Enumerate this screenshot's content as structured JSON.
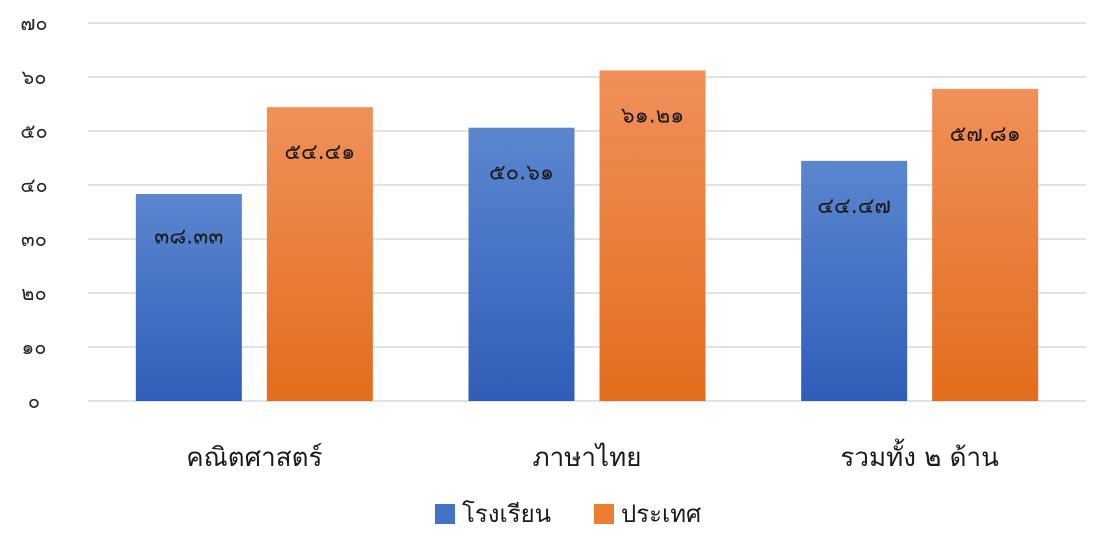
{
  "chart_data": {
    "type": "bar",
    "categories": [
      "คณิตศาสตร์",
      "ภาษาไทย",
      "รวมทั้ง ๒ ด้าน"
    ],
    "series": [
      {
        "name": "โรงเรียน",
        "values": [
          38.33,
          50.61,
          44.47
        ],
        "labels": [
          "๓๘.๓๓",
          "๕๐.๖๑",
          "๔๔.๔๗"
        ],
        "color": "#4472c4"
      },
      {
        "name": "ประเทศ",
        "values": [
          54.41,
          61.21,
          57.81
        ],
        "labels": [
          "๕๔.๔๑",
          "๖๑.๒๑",
          "๕๗.๘๑"
        ],
        "color": "#ed7d31"
      }
    ],
    "ylim": [
      0,
      70
    ],
    "yticks": [
      0,
      10,
      20,
      30,
      40,
      50,
      60,
      70
    ],
    "ytick_labels": [
      "๐",
      "๑๐",
      "๒๐",
      "๓๐",
      "๔๐",
      "๕๐",
      "๖๐",
      "๗๐"
    ],
    "grid": true,
    "legend": "bottom",
    "title": "",
    "xlabel": "",
    "ylabel": ""
  }
}
